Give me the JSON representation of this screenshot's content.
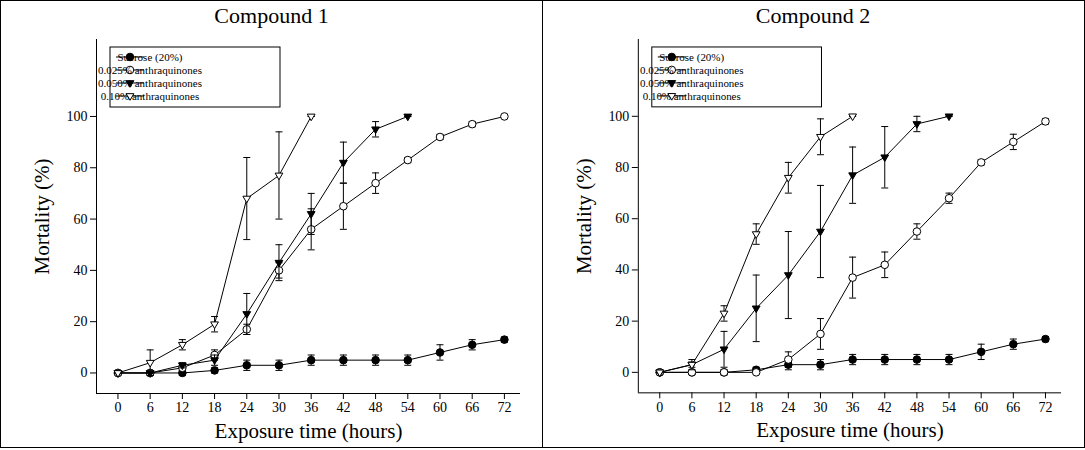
{
  "chart_data": [
    {
      "type": "line",
      "title": "Compound 1",
      "x_label": "Exposure time (hours)",
      "y_label": "Mortality (%)",
      "x": [
        0,
        6,
        12,
        18,
        24,
        30,
        36,
        42,
        48,
        54,
        60,
        66,
        72
      ],
      "xlim": [
        -4,
        75
      ],
      "xticks": [
        0,
        6,
        12,
        18,
        24,
        30,
        36,
        42,
        48,
        54,
        60,
        66,
        72
      ],
      "ylim": [
        -8,
        130
      ],
      "yticks": [
        0,
        20,
        40,
        60,
        80,
        100
      ],
      "legend": "upper left",
      "series": [
        {
          "name": "Sucrose (20%)",
          "color": "#000000",
          "marker": "circle",
          "values": [
            0,
            0,
            0,
            1,
            3,
            3,
            5,
            5,
            5,
            5,
            8,
            11,
            13
          ],
          "errors": [
            0,
            0,
            1,
            1,
            2,
            2,
            2,
            2,
            2,
            2,
            3,
            2,
            1
          ]
        },
        {
          "name": "0.025% anthraquinones",
          "color": "#000000",
          "marker": "circle-open",
          "values": [
            0,
            0,
            2,
            7,
            17,
            40,
            56,
            65,
            74,
            83,
            92,
            97,
            100
          ],
          "errors": [
            0,
            0,
            1,
            2,
            2,
            3,
            8,
            9,
            4,
            1,
            1,
            1,
            0
          ]
        },
        {
          "name": "0.050% anthraquinones",
          "color": "#000000",
          "marker": "triangle-down",
          "values": [
            0,
            0,
            3,
            5,
            23,
            43,
            62,
            82,
            95,
            100,
            null,
            null,
            null
          ],
          "errors": [
            0,
            0,
            1,
            2,
            8,
            7,
            8,
            8,
            3,
            0,
            null,
            null,
            null
          ]
        },
        {
          "name": "0.10% anthraquinones",
          "color": "#000000",
          "marker": "triangle-down-open",
          "values": [
            0,
            4,
            11,
            19,
            68,
            77,
            100,
            null,
            null,
            null,
            null,
            null,
            null
          ],
          "errors": [
            0,
            5,
            2,
            3,
            16,
            17,
            0,
            null,
            null,
            null,
            null,
            null,
            null
          ]
        }
      ]
    },
    {
      "type": "line",
      "title": "Compound 2",
      "x_label": "Exposure time (hours)",
      "y_label": "Mortality (%)",
      "x": [
        0,
        6,
        12,
        18,
        24,
        30,
        36,
        42,
        48,
        54,
        60,
        66,
        72
      ],
      "xlim": [
        -4,
        75
      ],
      "xticks": [
        0,
        6,
        12,
        18,
        24,
        30,
        36,
        42,
        48,
        54,
        60,
        66,
        72
      ],
      "ylim": [
        -8,
        130
      ],
      "yticks": [
        0,
        20,
        40,
        60,
        80,
        100
      ],
      "legend": "upper left",
      "series": [
        {
          "name": "Sucrose (20%)",
          "color": "#000000",
          "marker": "circle",
          "values": [
            0,
            0,
            0,
            1,
            3,
            3,
            5,
            5,
            5,
            5,
            8,
            11,
            13
          ],
          "errors": [
            0,
            0,
            1,
            1,
            2,
            2,
            2,
            2,
            2,
            2,
            3,
            2,
            1
          ]
        },
        {
          "name": "0.025% anthraquinones",
          "color": "#000000",
          "marker": "circle-open",
          "values": [
            0,
            0,
            0,
            0,
            5,
            15,
            37,
            42,
            55,
            68,
            82,
            90,
            98
          ],
          "errors": [
            0,
            0,
            0,
            0,
            3,
            6,
            8,
            5,
            3,
            2,
            1,
            3,
            1
          ]
        },
        {
          "name": "0.050% anthraquinones",
          "color": "#000000",
          "marker": "triangle-down",
          "values": [
            0,
            3,
            9,
            25,
            38,
            55,
            77,
            84,
            97,
            100,
            null,
            null,
            null
          ],
          "errors": [
            0,
            1,
            7,
            13,
            17,
            18,
            11,
            12,
            3,
            0,
            null,
            null,
            null
          ]
        },
        {
          "name": "0.10% anthraquinones",
          "color": "#000000",
          "marker": "triangle-down-open",
          "values": [
            0,
            3,
            23,
            54,
            76,
            92,
            100,
            null,
            null,
            null,
            null,
            null,
            null
          ],
          "errors": [
            0,
            2,
            3,
            4,
            6,
            7,
            0,
            null,
            null,
            null,
            null,
            null,
            null
          ]
        }
      ]
    }
  ]
}
